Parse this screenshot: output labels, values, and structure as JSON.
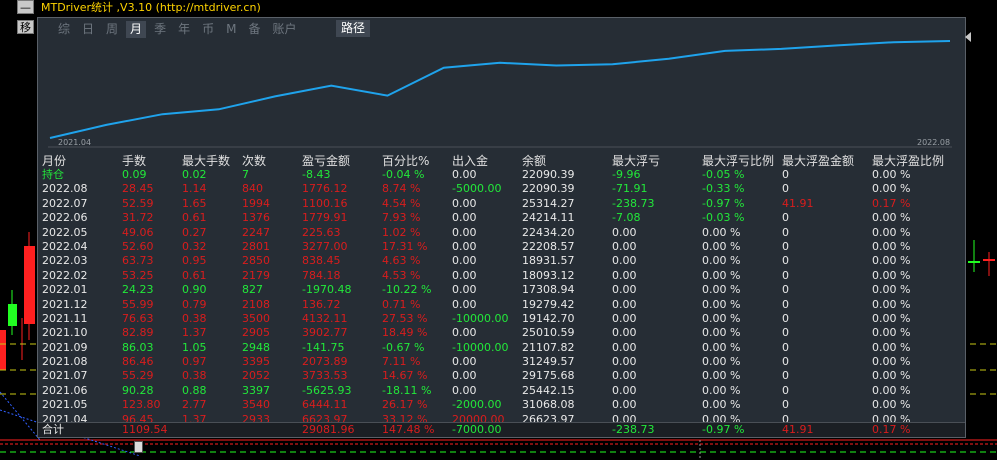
{
  "window": {
    "title": "MTDriver统计 ,V3.10 (http://mtdriver.cn)",
    "minimize_label": "—",
    "move_label": "移"
  },
  "tabs": [
    "综",
    "日",
    "周",
    "月",
    "季",
    "年",
    "币",
    "M",
    "备",
    "账户"
  ],
  "active_tab": "月",
  "path_button": "路径",
  "chart": {
    "x_start": "2021.04",
    "x_end": "2022.08",
    "line_color": "#1fa3ec",
    "points": [
      0,
      6623.97,
      12000,
      14500,
      21000,
      26400,
      21400,
      35500,
      38000,
      36600,
      37300,
      40000,
      44000,
      45000,
      46800,
      48400,
      49000
    ]
  },
  "table": {
    "headers": [
      "月份",
      "手数",
      "最大手数",
      "次数",
      "盈亏金额",
      "百分比%",
      "出入金",
      "余额",
      "最大浮亏",
      "最大浮亏比例",
      "最大浮盈金额",
      "最大浮盈比例"
    ],
    "rows": [
      {
        "c": [
          "持仓",
          "0.09",
          "0.02",
          "7",
          "-8.43",
          "-0.04 %",
          "0.00",
          "22090.39",
          "-9.96",
          "-0.05 %",
          "0",
          "0.00 %"
        ],
        "color": "green"
      },
      {
        "c": [
          "2022.08",
          "28.45",
          "1.14",
          "840",
          "1776.12",
          "8.74 %",
          "-5000.00",
          "22090.39",
          "-71.91",
          "-0.33 %",
          "0",
          "0.00 %"
        ],
        "color": "red"
      },
      {
        "c": [
          "2022.07",
          "52.59",
          "1.65",
          "1994",
          "1100.16",
          "4.54 %",
          "0.00",
          "25314.27",
          "-238.73",
          "-0.97 %",
          "41.91",
          "0.17 %"
        ],
        "color": "red"
      },
      {
        "c": [
          "2022.06",
          "31.72",
          "0.61",
          "1376",
          "1779.91",
          "7.93 %",
          "0.00",
          "24214.11",
          "-7.08",
          "-0.03 %",
          "0",
          "0.00 %"
        ],
        "color": "red"
      },
      {
        "c": [
          "2022.05",
          "49.06",
          "0.27",
          "2247",
          "225.63",
          "1.02 %",
          "0.00",
          "22434.20",
          "0.00",
          "0.00 %",
          "0",
          "0.00 %"
        ],
        "color": "red"
      },
      {
        "c": [
          "2022.04",
          "52.60",
          "0.32",
          "2801",
          "3277.00",
          "17.31 %",
          "0.00",
          "22208.57",
          "0.00",
          "0.00 %",
          "0",
          "0.00 %"
        ],
        "color": "red"
      },
      {
        "c": [
          "2022.03",
          "63.73",
          "0.95",
          "2850",
          "838.45",
          "4.63 %",
          "0.00",
          "18931.57",
          "0.00",
          "0.00 %",
          "0",
          "0.00 %"
        ],
        "color": "red"
      },
      {
        "c": [
          "2022.02",
          "53.25",
          "0.61",
          "2179",
          "784.18",
          "4.53 %",
          "0.00",
          "18093.12",
          "0.00",
          "0.00 %",
          "0",
          "0.00 %"
        ],
        "color": "red"
      },
      {
        "c": [
          "2022.01",
          "24.23",
          "0.90",
          "827",
          "-1970.48",
          "-10.22 %",
          "0.00",
          "17308.94",
          "0.00",
          "0.00 %",
          "0",
          "0.00 %"
        ],
        "color": "green"
      },
      {
        "c": [
          "2021.12",
          "55.99",
          "0.79",
          "2108",
          "136.72",
          "0.71 %",
          "0.00",
          "19279.42",
          "0.00",
          "0.00 %",
          "0",
          "0.00 %"
        ],
        "color": "red"
      },
      {
        "c": [
          "2021.11",
          "76.63",
          "0.38",
          "3500",
          "4132.11",
          "27.53 %",
          "-10000.00",
          "19142.70",
          "0.00",
          "0.00 %",
          "0",
          "0.00 %"
        ],
        "color": "red"
      },
      {
        "c": [
          "2021.10",
          "82.89",
          "1.37",
          "2905",
          "3902.77",
          "18.49 %",
          "0.00",
          "25010.59",
          "0.00",
          "0.00 %",
          "0",
          "0.00 %"
        ],
        "color": "red"
      },
      {
        "c": [
          "2021.09",
          "86.03",
          "1.05",
          "2948",
          "-141.75",
          "-0.67 %",
          "-10000.00",
          "21107.82",
          "0.00",
          "0.00 %",
          "0",
          "0.00 %"
        ],
        "color": "green"
      },
      {
        "c": [
          "2021.08",
          "86.46",
          "0.97",
          "3395",
          "2073.89",
          "7.11 %",
          "0.00",
          "31249.57",
          "0.00",
          "0.00 %",
          "0",
          "0.00 %"
        ],
        "color": "red"
      },
      {
        "c": [
          "2021.07",
          "55.29",
          "0.38",
          "2052",
          "3733.53",
          "14.67 %",
          "0.00",
          "29175.68",
          "0.00",
          "0.00 %",
          "0",
          "0.00 %"
        ],
        "color": "red"
      },
      {
        "c": [
          "2021.06",
          "90.28",
          "0.88",
          "3397",
          "-5625.93",
          "-18.11 %",
          "0.00",
          "25442.15",
          "0.00",
          "0.00 %",
          "0",
          "0.00 %"
        ],
        "color": "green"
      },
      {
        "c": [
          "2021.05",
          "123.80",
          "2.77",
          "3540",
          "6444.11",
          "26.17 %",
          "-2000.00",
          "31068.08",
          "0.00",
          "0.00 %",
          "0",
          "0.00 %"
        ],
        "color": "red"
      },
      {
        "c": [
          "2021.04",
          "96.45",
          "1.37",
          "2933",
          "6623.97",
          "33.12 %",
          "20000.00",
          "26623.97",
          "0.00",
          "0.00 %",
          "0",
          "0.00 %"
        ],
        "color": "red"
      }
    ],
    "total": {
      "label": "合计",
      "lots": "1109.54",
      "profit": "29081.96",
      "percent": "147.48 %",
      "inout": "-7000.00",
      "max_float_loss": "-238.73",
      "max_float_loss_pct": "-0.97 %",
      "max_float_profit": "41.91",
      "max_float_profit_pct": "0.17 %"
    }
  },
  "colors": {
    "panel_bg": "#262d35",
    "positive_red": "#d91d1d",
    "negative_green": "#22e83a",
    "title_yellow": "#ffd400"
  }
}
